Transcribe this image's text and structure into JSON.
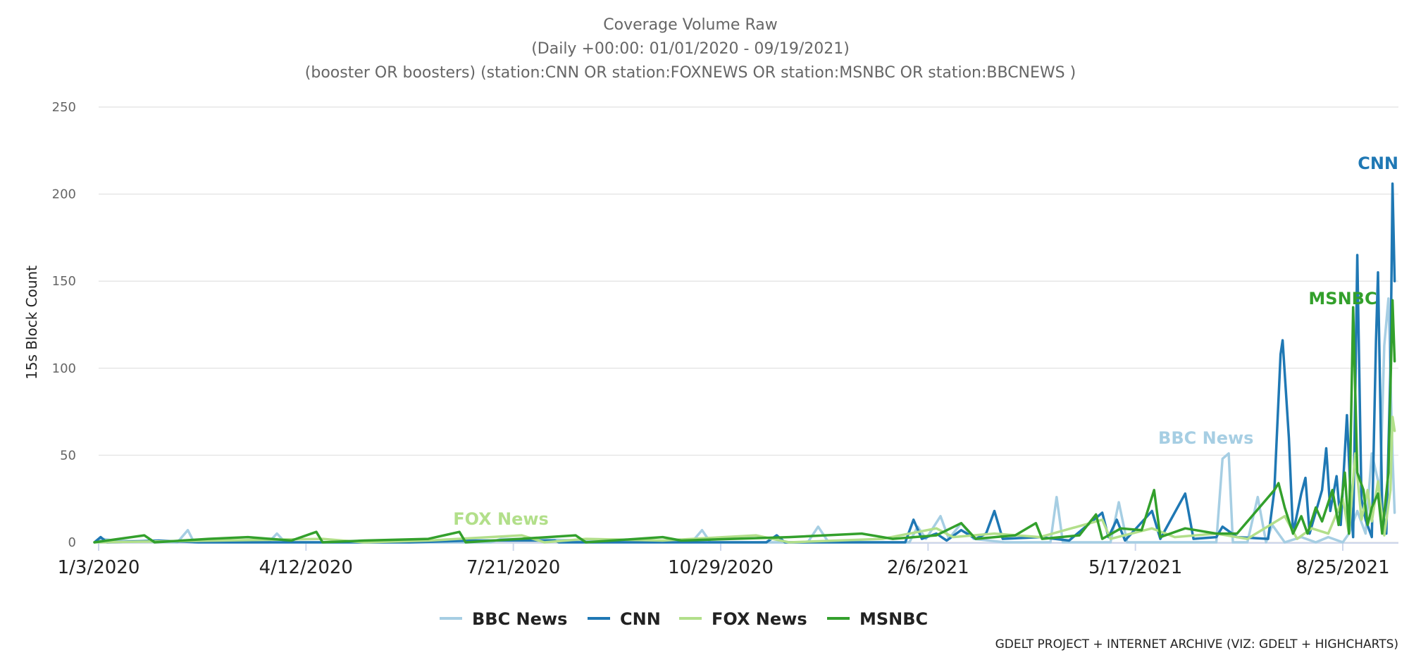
{
  "chart_data": {
    "type": "line",
    "title_lines": [
      "Coverage Volume Raw",
      "(Daily +00:00: 01/01/2020 - 09/19/2021)",
      "(booster OR boosters) (station:CNN OR station:FOXNEWS OR station:MSNBC OR station:BBCNEWS )"
    ],
    "ylabel": "15s Block Count",
    "xlabel": "",
    "ylim": [
      0,
      250
    ],
    "y_ticks": [
      0,
      50,
      100,
      150,
      200,
      250
    ],
    "x_range": [
      "2020-01-01",
      "2021-09-19"
    ],
    "x_tick_labels": [
      "1/3/2020",
      "4/12/2020",
      "7/21/2020",
      "10/29/2020",
      "2/6/2021",
      "5/17/2021",
      "8/25/2021"
    ],
    "x_tick_dates": [
      "2020-01-03",
      "2020-04-12",
      "2020-07-21",
      "2020-10-29",
      "2021-02-06",
      "2021-05-17",
      "2021-08-25"
    ],
    "grid": true,
    "legend_position": "bottom",
    "credit": "GDELT PROJECT + INTERNET ARCHIVE (VIZ: GDELT + HIGHCHARTS)",
    "series": [
      {
        "name": "BBC News",
        "color": "#a6cee3",
        "label_date": "2021-06-20",
        "points": [
          [
            "2020-01-01",
            0
          ],
          [
            "2020-01-05",
            2
          ],
          [
            "2020-01-10",
            1
          ],
          [
            "2020-02-10",
            0
          ],
          [
            "2020-02-15",
            7
          ],
          [
            "2020-02-18",
            0
          ],
          [
            "2020-03-25",
            0
          ],
          [
            "2020-03-29",
            5
          ],
          [
            "2020-04-02",
            0
          ],
          [
            "2020-07-10",
            0
          ],
          [
            "2020-07-15",
            2
          ],
          [
            "2020-10-15",
            0
          ],
          [
            "2020-10-20",
            7
          ],
          [
            "2020-10-24",
            0
          ],
          [
            "2020-12-10",
            0
          ],
          [
            "2020-12-15",
            9
          ],
          [
            "2020-12-20",
            0
          ],
          [
            "2021-01-28",
            0
          ],
          [
            "2021-02-01",
            9
          ],
          [
            "2021-02-05",
            2
          ],
          [
            "2021-02-12",
            15
          ],
          [
            "2021-02-16",
            2
          ],
          [
            "2021-02-22",
            11
          ],
          [
            "2021-02-28",
            2
          ],
          [
            "2021-03-15",
            0
          ],
          [
            "2021-04-06",
            0
          ],
          [
            "2021-04-09",
            26
          ],
          [
            "2021-04-12",
            0
          ],
          [
            "2021-05-05",
            0
          ],
          [
            "2021-05-09",
            23
          ],
          [
            "2021-05-13",
            0
          ],
          [
            "2021-06-25",
            0
          ],
          [
            "2021-06-28",
            48
          ],
          [
            "2021-07-01",
            51
          ],
          [
            "2021-07-03",
            0
          ],
          [
            "2021-07-10",
            0
          ],
          [
            "2021-07-15",
            26
          ],
          [
            "2021-07-19",
            0
          ],
          [
            "2021-07-22",
            10
          ],
          [
            "2021-07-28",
            0
          ],
          [
            "2021-08-05",
            3
          ],
          [
            "2021-08-12",
            0
          ],
          [
            "2021-08-18",
            3
          ],
          [
            "2021-08-25",
            0
          ],
          [
            "2021-08-28",
            5
          ],
          [
            "2021-09-01",
            18
          ],
          [
            "2021-09-05",
            5
          ],
          [
            "2021-09-08",
            51
          ],
          [
            "2021-09-12",
            30
          ],
          [
            "2021-09-14",
            113
          ],
          [
            "2021-09-16",
            140
          ],
          [
            "2021-09-18",
            50
          ],
          [
            "2021-09-19",
            17
          ]
        ]
      },
      {
        "name": "CNN",
        "color": "#1f78b4",
        "label_date": "2021-09-18",
        "points": [
          [
            "2020-01-01",
            0
          ],
          [
            "2020-01-04",
            3
          ],
          [
            "2020-01-07",
            0
          ],
          [
            "2020-02-01",
            1
          ],
          [
            "2020-02-20",
            0
          ],
          [
            "2020-06-01",
            0
          ],
          [
            "2020-07-01",
            1
          ],
          [
            "2020-08-10",
            1
          ],
          [
            "2020-08-12",
            0
          ],
          [
            "2020-11-20",
            0
          ],
          [
            "2020-11-25",
            4
          ],
          [
            "2020-11-29",
            0
          ],
          [
            "2021-01-26",
            0
          ],
          [
            "2021-01-30",
            13
          ],
          [
            "2021-02-03",
            2
          ],
          [
            "2021-02-10",
            5
          ],
          [
            "2021-02-15",
            1
          ],
          [
            "2021-02-22",
            7
          ],
          [
            "2021-03-01",
            2
          ],
          [
            "2021-03-06",
            5
          ],
          [
            "2021-03-10",
            18
          ],
          [
            "2021-03-14",
            2
          ],
          [
            "2021-04-01",
            3
          ],
          [
            "2021-04-15",
            1
          ],
          [
            "2021-05-01",
            17
          ],
          [
            "2021-05-04",
            3
          ],
          [
            "2021-05-08",
            13
          ],
          [
            "2021-05-12",
            1
          ],
          [
            "2021-05-25",
            18
          ],
          [
            "2021-05-29",
            2
          ],
          [
            "2021-06-10",
            28
          ],
          [
            "2021-06-14",
            2
          ],
          [
            "2021-06-25",
            3
          ],
          [
            "2021-06-28",
            9
          ],
          [
            "2021-07-05",
            3
          ],
          [
            "2021-07-20",
            2
          ],
          [
            "2021-07-23",
            30
          ],
          [
            "2021-07-26",
            108
          ],
          [
            "2021-07-27",
            116
          ],
          [
            "2021-07-30",
            60
          ],
          [
            "2021-08-01",
            5
          ],
          [
            "2021-08-05",
            28
          ],
          [
            "2021-08-07",
            37
          ],
          [
            "2021-08-09",
            5
          ],
          [
            "2021-08-15",
            30
          ],
          [
            "2021-08-17",
            54
          ],
          [
            "2021-08-19",
            18
          ],
          [
            "2021-08-22",
            38
          ],
          [
            "2021-08-24",
            10
          ],
          [
            "2021-08-27",
            73
          ],
          [
            "2021-08-29",
            20
          ],
          [
            "2021-08-30",
            3
          ],
          [
            "2021-09-01",
            165
          ],
          [
            "2021-09-03",
            25
          ],
          [
            "2021-09-05",
            13
          ],
          [
            "2021-09-08",
            3
          ],
          [
            "2021-09-10",
            115
          ],
          [
            "2021-09-11",
            155
          ],
          [
            "2021-09-13",
            20
          ],
          [
            "2021-09-15",
            5
          ],
          [
            "2021-09-17",
            100
          ],
          [
            "2021-09-18",
            206
          ],
          [
            "2021-09-19",
            150
          ]
        ]
      },
      {
        "name": "FOX News",
        "color": "#b2df8a",
        "label_date": "2020-07-15",
        "points": [
          [
            "2020-01-01",
            0
          ],
          [
            "2020-03-01",
            1
          ],
          [
            "2020-04-20",
            2
          ],
          [
            "2020-05-10",
            0
          ],
          [
            "2020-06-10",
            1
          ],
          [
            "2020-07-25",
            4
          ],
          [
            "2020-08-05",
            0
          ],
          [
            "2020-08-25",
            2
          ],
          [
            "2020-10-01",
            1
          ],
          [
            "2020-11-15",
            4
          ],
          [
            "2020-12-01",
            0
          ],
          [
            "2021-01-15",
            2
          ],
          [
            "2021-02-10",
            8
          ],
          [
            "2021-02-18",
            3
          ],
          [
            "2021-03-10",
            5
          ],
          [
            "2021-04-01",
            3
          ],
          [
            "2021-05-01",
            13
          ],
          [
            "2021-05-05",
            2
          ],
          [
            "2021-05-25",
            8
          ],
          [
            "2021-06-05",
            3
          ],
          [
            "2021-06-25",
            5
          ],
          [
            "2021-07-10",
            2
          ],
          [
            "2021-07-28",
            15
          ],
          [
            "2021-08-03",
            2
          ],
          [
            "2021-08-10",
            8
          ],
          [
            "2021-08-18",
            5
          ],
          [
            "2021-08-25",
            25
          ],
          [
            "2021-08-28",
            5
          ],
          [
            "2021-08-31",
            51
          ],
          [
            "2021-09-03",
            13
          ],
          [
            "2021-09-06",
            30
          ],
          [
            "2021-09-08",
            12
          ],
          [
            "2021-09-11",
            35
          ],
          [
            "2021-09-14",
            4
          ],
          [
            "2021-09-17",
            30
          ],
          [
            "2021-09-18",
            72
          ],
          [
            "2021-09-19",
            64
          ]
        ]
      },
      {
        "name": "MSNBC",
        "color": "#33a02c",
        "label_date": "2021-08-25",
        "points": [
          [
            "2020-01-01",
            0
          ],
          [
            "2020-01-25",
            4
          ],
          [
            "2020-01-30",
            0
          ],
          [
            "2020-02-25",
            2
          ],
          [
            "2020-03-15",
            3
          ],
          [
            "2020-04-05",
            1
          ],
          [
            "2020-04-17",
            6
          ],
          [
            "2020-04-20",
            0
          ],
          [
            "2020-05-10",
            1
          ],
          [
            "2020-06-10",
            2
          ],
          [
            "2020-06-25",
            6
          ],
          [
            "2020-06-28",
            0
          ],
          [
            "2020-08-20",
            4
          ],
          [
            "2020-08-25",
            0
          ],
          [
            "2020-10-01",
            3
          ],
          [
            "2020-10-10",
            1
          ],
          [
            "2020-12-01",
            3
          ],
          [
            "2021-01-05",
            5
          ],
          [
            "2021-01-20",
            2
          ],
          [
            "2021-02-10",
            4
          ],
          [
            "2021-02-22",
            11
          ],
          [
            "2021-03-01",
            2
          ],
          [
            "2021-03-20",
            4
          ],
          [
            "2021-03-30",
            11
          ],
          [
            "2021-04-02",
            2
          ],
          [
            "2021-04-20",
            4
          ],
          [
            "2021-04-28",
            16
          ],
          [
            "2021-05-01",
            2
          ],
          [
            "2021-05-10",
            8
          ],
          [
            "2021-05-20",
            7
          ],
          [
            "2021-05-26",
            30
          ],
          [
            "2021-05-29",
            3
          ],
          [
            "2021-06-10",
            8
          ],
          [
            "2021-06-25",
            5
          ],
          [
            "2021-07-05",
            5
          ],
          [
            "2021-07-23",
            30
          ],
          [
            "2021-07-25",
            34
          ],
          [
            "2021-07-28",
            20
          ],
          [
            "2021-08-01",
            5
          ],
          [
            "2021-08-05",
            15
          ],
          [
            "2021-08-08",
            5
          ],
          [
            "2021-08-12",
            20
          ],
          [
            "2021-08-15",
            12
          ],
          [
            "2021-08-20",
            30
          ],
          [
            "2021-08-23",
            10
          ],
          [
            "2021-08-26",
            40
          ],
          [
            "2021-08-28",
            5
          ],
          [
            "2021-08-30",
            135
          ],
          [
            "2021-09-01",
            40
          ],
          [
            "2021-09-04",
            30
          ],
          [
            "2021-09-06",
            10
          ],
          [
            "2021-09-08",
            20
          ],
          [
            "2021-09-11",
            28
          ],
          [
            "2021-09-13",
            5
          ],
          [
            "2021-09-16",
            40
          ],
          [
            "2021-09-18",
            139
          ],
          [
            "2021-09-19",
            104
          ]
        ]
      }
    ]
  }
}
